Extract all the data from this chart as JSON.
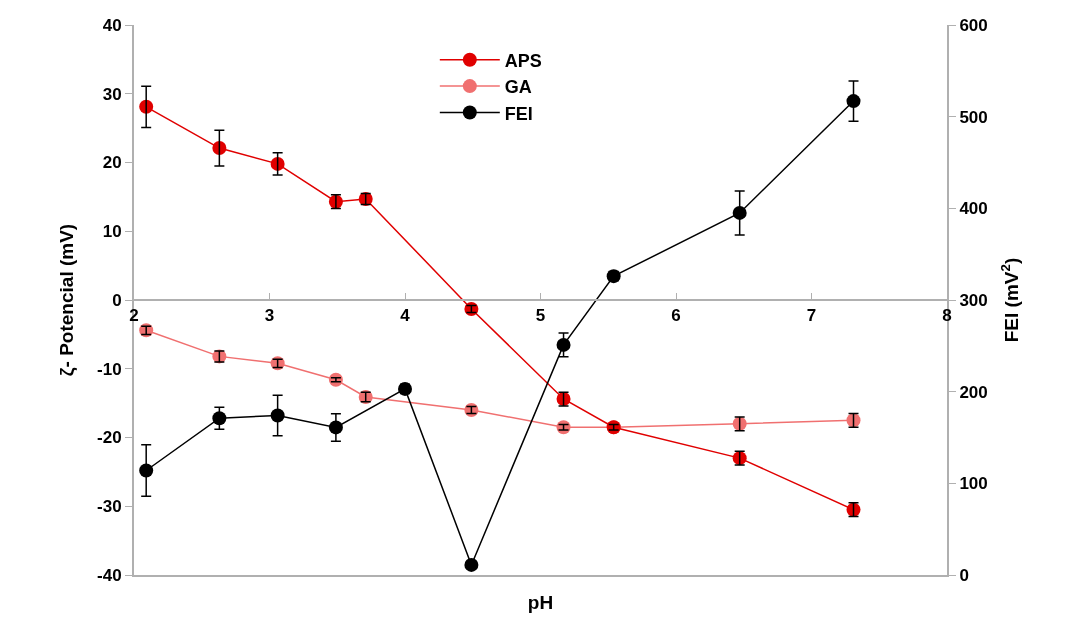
{
  "chart_data": {
    "type": "line",
    "xlabel": "pH",
    "ylabel": "ζ- Potencial (mV)",
    "y2label": "FEI (mV$^{2}$)",
    "xlim": [
      2,
      8
    ],
    "xticks": [
      2,
      3,
      4,
      5,
      6,
      7,
      8
    ],
    "ylim": [
      -40,
      40
    ],
    "yticks": [
      -40,
      -30,
      -20,
      -10,
      0,
      10,
      20,
      30,
      40
    ],
    "y2lim": [
      0,
      600
    ],
    "y2ticks": [
      0,
      100,
      200,
      300,
      400,
      500,
      600
    ],
    "legend": "top",
    "marker": "circle",
    "line_style": "solid",
    "series": [
      {
        "name": "APS",
        "color": "#e00000",
        "x": [
          2.09,
          2.63,
          3.06,
          3.49,
          3.71,
          4.49,
          5.17,
          5.54,
          6.47,
          7.31
        ],
        "values": [
          28.1,
          22.1,
          19.8,
          14.3,
          14.7,
          -1.3,
          -14.4,
          -18.5,
          -23.0,
          -30.5
        ],
        "errors": [
          3,
          2.6,
          1.6,
          1,
          0.8,
          0.5,
          1,
          0.4,
          1,
          1
        ]
      },
      {
        "name": "GA",
        "color": "#f07070",
        "x": [
          2.09,
          2.63,
          3.06,
          3.49,
          3.71,
          4.49,
          5.17,
          5.54,
          6.47,
          7.31
        ],
        "values": [
          -4.4,
          -8.2,
          -9.2,
          -11.6,
          -14.1,
          -16.0,
          -18.5,
          -18.5,
          -18.0,
          -17.5
        ],
        "errors": [
          0.6,
          0.8,
          0.6,
          0.3,
          0.7,
          0.5,
          0.4,
          null,
          1,
          1
        ]
      },
      {
        "name": "FEI",
        "color": "#000000",
        "axis": "y2",
        "x": [
          2.09,
          2.63,
          3.06,
          3.49,
          4.0,
          4.49,
          5.17,
          5.54,
          6.47,
          7.31
        ],
        "values": [
          114,
          171,
          174,
          161,
          203,
          11,
          251,
          326,
          395,
          517
        ],
        "errors": [
          28,
          12,
          22,
          15,
          5,
          3,
          13,
          5,
          24,
          22
        ]
      }
    ]
  }
}
